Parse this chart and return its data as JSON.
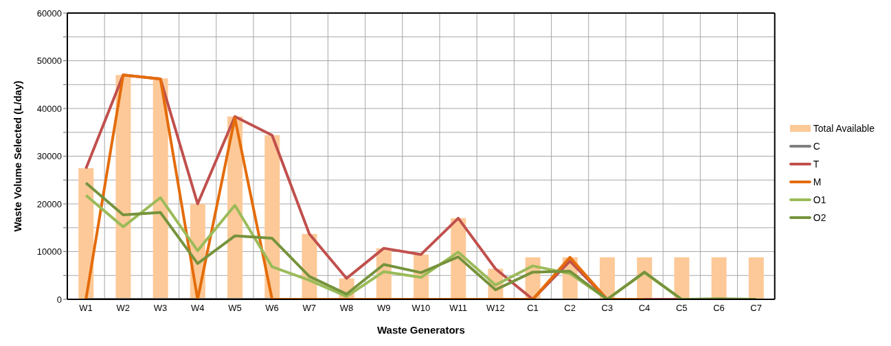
{
  "chart_data": {
    "type": "bar",
    "xlabel": "Waste Generators",
    "ylabel": "Waste Volume Selected (L/day)",
    "categories": [
      "W1",
      "W2",
      "W3",
      "W4",
      "W5",
      "W6",
      "W7",
      "W8",
      "W9",
      "W10",
      "W11",
      "W12",
      "C1",
      "C2",
      "C3",
      "C4",
      "C5",
      "C6",
      "C7"
    ],
    "series": [
      {
        "name": "Total Available",
        "color": "#fdc998",
        "values": [
          27500,
          47000,
          46300,
          20000,
          38300,
          34400,
          13700,
          4400,
          10700,
          9400,
          17000,
          6400,
          8800,
          8800,
          8800,
          8800,
          8800,
          8800,
          8800
        ]
      },
      {
        "name": "C",
        "type": "line",
        "color": "#7f7f7f",
        "values": [
          0,
          0,
          0,
          0,
          0,
          0,
          null,
          null,
          null,
          null,
          null,
          null,
          null,
          null,
          null,
          null,
          null,
          null,
          null
        ]
      },
      {
        "name": "T",
        "type": "line",
        "color": "#c0504d",
        "values": [
          27400,
          47000,
          46200,
          20000,
          38300,
          34400,
          13700,
          4400,
          10700,
          9400,
          17000,
          6400,
          0,
          8000,
          0,
          0,
          0,
          0,
          0
        ]
      },
      {
        "name": "M",
        "type": "line",
        "color": "#e46c0a",
        "values": [
          0,
          47000,
          46200,
          0,
          38000,
          0,
          0,
          0,
          0,
          0,
          0,
          0,
          0,
          8800,
          0,
          0,
          null,
          null,
          null
        ]
      },
      {
        "name": "O1",
        "type": "line",
        "color": "#9bbb59",
        "values": [
          21800,
          15200,
          21300,
          10200,
          19700,
          6800,
          4000,
          600,
          5800,
          4600,
          9900,
          3000,
          7000,
          5400,
          0,
          5600,
          0,
          0,
          0
        ]
      },
      {
        "name": "O2",
        "type": "line",
        "color": "#76933c",
        "values": [
          24400,
          17700,
          18200,
          7500,
          13300,
          12800,
          4800,
          1100,
          7300,
          5600,
          8900,
          2000,
          5700,
          5900,
          0,
          5700,
          0,
          100,
          0
        ]
      }
    ],
    "ylim": [
      0,
      60000
    ],
    "yticks": [
      0,
      {
        "value": 5000,
        "label": null
      },
      10000,
      {
        "value": 15000,
        "label": null
      },
      20000,
      {
        "value": 25000,
        "label": null
      },
      30000,
      {
        "value": 35000,
        "label": null
      },
      40000,
      {
        "value": 45000,
        "label": null
      },
      50000,
      {
        "value": 55000,
        "label": null
      },
      60000
    ],
    "grid": true,
    "legend": "right",
    "marker": "none",
    "line_style": "solid"
  }
}
